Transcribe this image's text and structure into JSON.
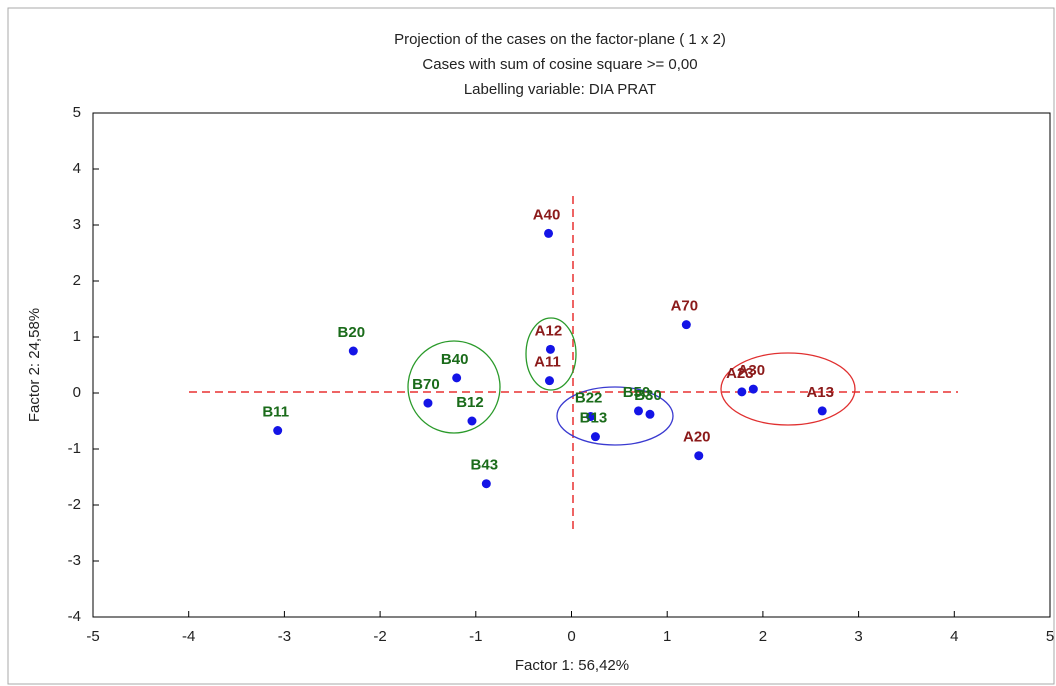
{
  "chart_data": {
    "type": "scatter",
    "title": "Projection of the cases on the factor-plane (  1 x   2)",
    "subtitle": "Cases with sum of cosine square >=  0,00",
    "caption": "Labelling variable: DIA PRAT",
    "x_label": "Factor 1: 56,42%",
    "y_label": "Factor 2: 24,58%",
    "xlim": [
      -5,
      5
    ],
    "ylim": [
      -4,
      5
    ],
    "xticks": [
      -5,
      -4,
      -3,
      -2,
      -1,
      0,
      1,
      2,
      3,
      4,
      5
    ],
    "yticks": [
      -4,
      -3,
      -2,
      -1,
      0,
      1,
      2,
      3,
      4,
      5
    ],
    "marker_color": "#1414e6",
    "points": [
      {
        "label": "A40",
        "x": -0.24,
        "y": 2.85,
        "label_color": "#8b1a1a"
      },
      {
        "label": "A12",
        "x": -0.22,
        "y": 0.78,
        "label_color": "#8b1a1a"
      },
      {
        "label": "A11",
        "x": -0.23,
        "y": 0.22,
        "label_color": "#8b1a1a"
      },
      {
        "label": "A70",
        "x": 1.2,
        "y": 1.22,
        "label_color": "#8b1a1a"
      },
      {
        "label": "A23",
        "x": 1.78,
        "y": 0.02,
        "label_color": "#8b1a1a"
      },
      {
        "label": "A30",
        "x": 1.9,
        "y": 0.07,
        "label_color": "#8b1a1a"
      },
      {
        "label": "A13",
        "x": 2.62,
        "y": -0.32,
        "label_color": "#8b1a1a"
      },
      {
        "label": "A20",
        "x": 1.33,
        "y": -1.12,
        "label_color": "#8b1a1a"
      },
      {
        "label": "B20",
        "x": -2.28,
        "y": 0.75,
        "label_color": "#1a6b1a"
      },
      {
        "label": "B40",
        "x": -1.2,
        "y": 0.27,
        "label_color": "#1a6b1a"
      },
      {
        "label": "B70",
        "x": -1.5,
        "y": -0.18,
        "label_color": "#1a6b1a"
      },
      {
        "label": "B12",
        "x": -1.04,
        "y": -0.5,
        "label_color": "#1a6b1a"
      },
      {
        "label": "B11",
        "x": -3.07,
        "y": -0.67,
        "label_color": "#1a6b1a"
      },
      {
        "label": "B43",
        "x": -0.89,
        "y": -1.62,
        "label_color": "#1a6b1a"
      },
      {
        "label": "B22",
        "x": 0.2,
        "y": -0.42,
        "label_color": "#1a6b1a"
      },
      {
        "label": "B13",
        "x": 0.25,
        "y": -0.78,
        "label_color": "#1a6b1a"
      },
      {
        "label": "B50",
        "x": 0.7,
        "y": -0.32,
        "label_color": "#1a6b1a"
      },
      {
        "label": "B30",
        "x": 0.82,
        "y": -0.38,
        "label_color": "#1a6b1a"
      }
    ]
  }
}
